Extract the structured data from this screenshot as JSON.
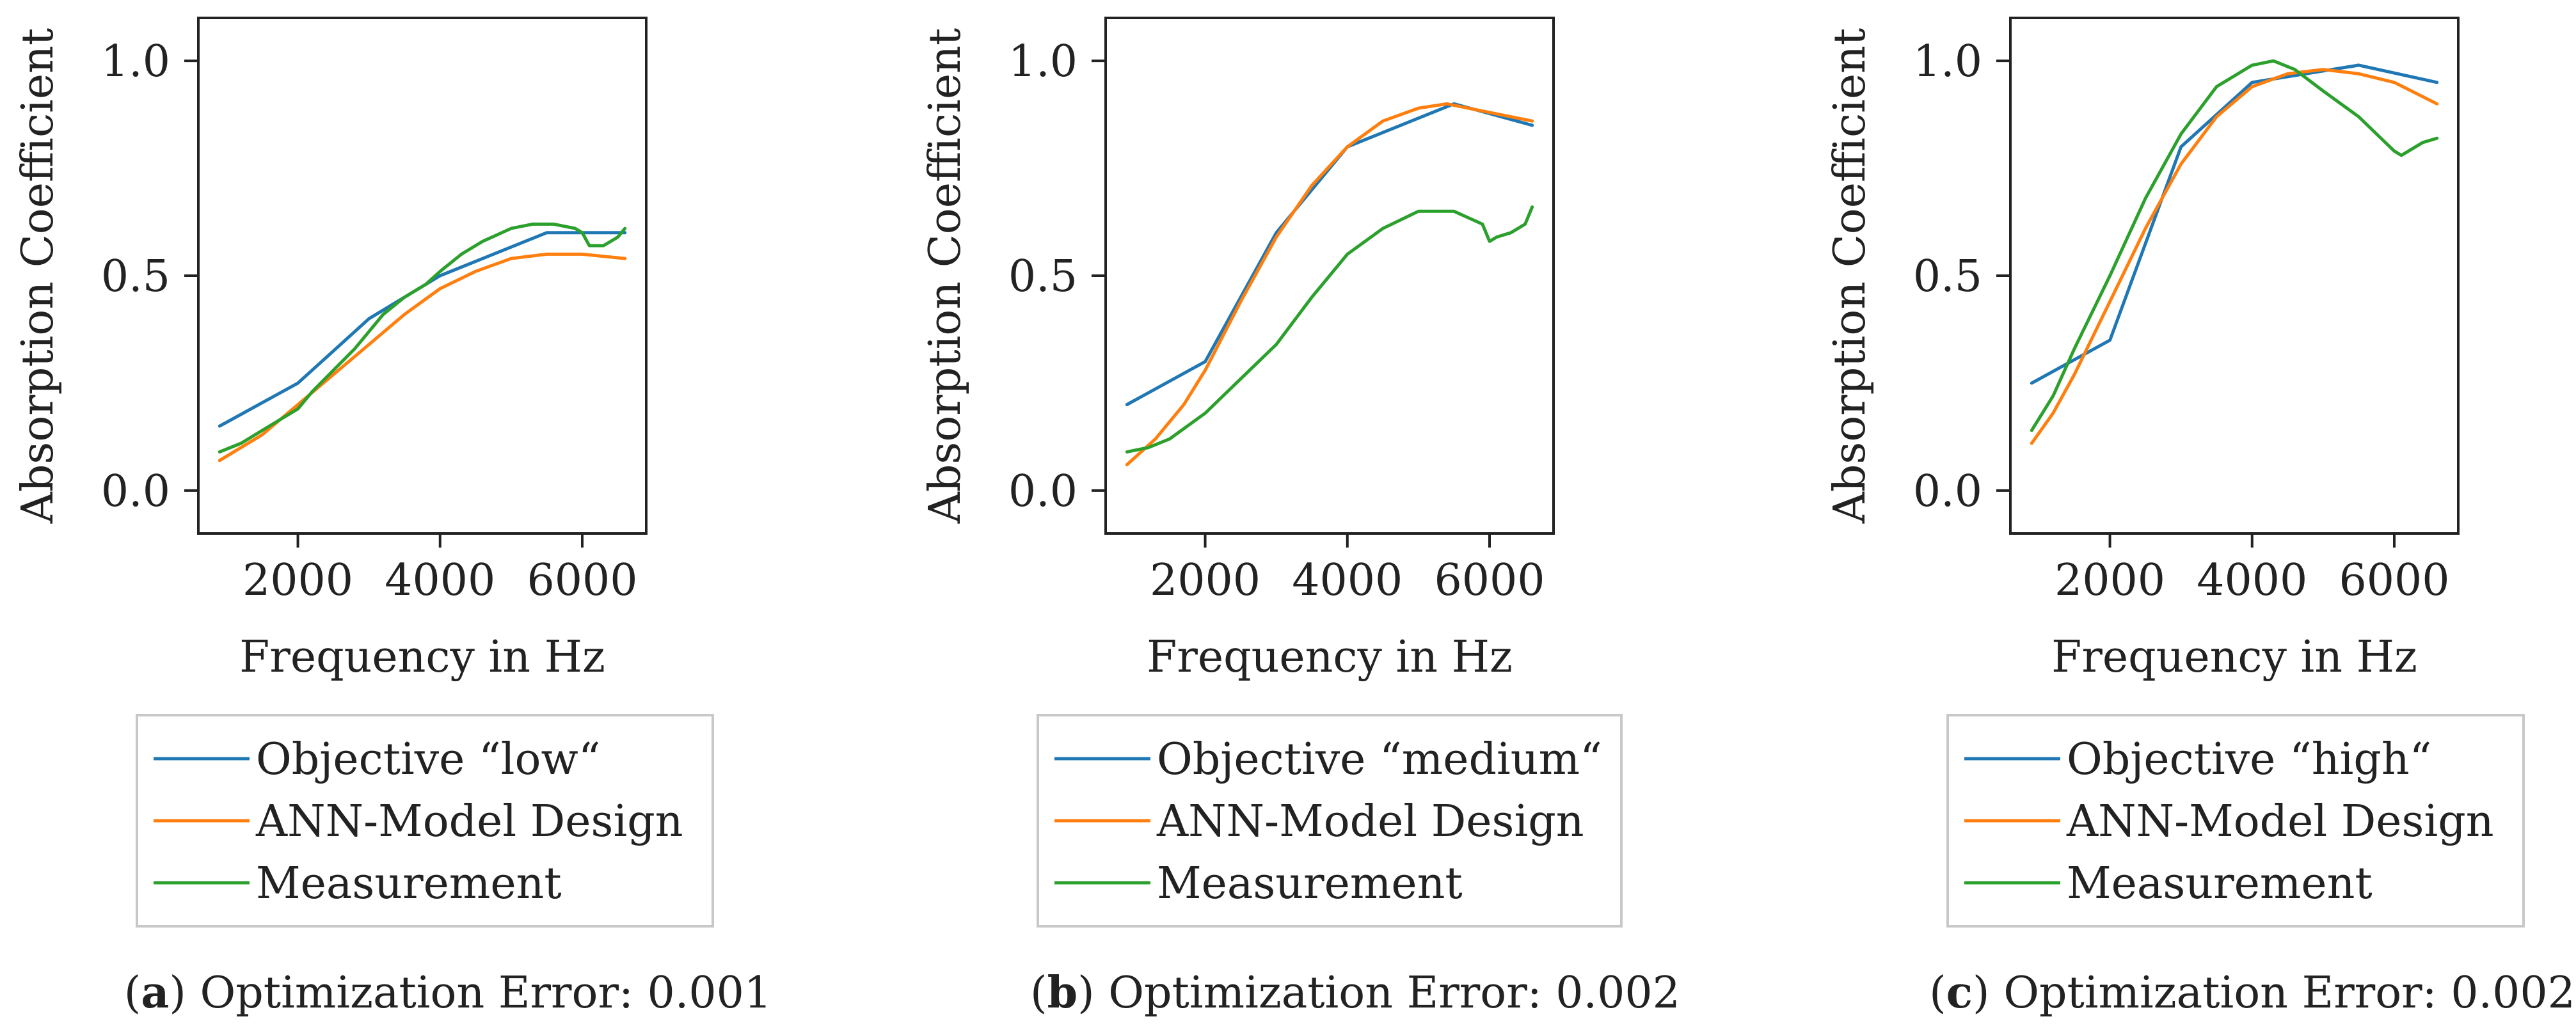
{
  "chart_data": [
    {
      "type": "line",
      "panel": "a",
      "caption": "Optimization Error: 0.001",
      "xlabel": "Frequency in Hz",
      "ylabel": "Absorption Coefficient",
      "xlim": [
        600,
        6900
      ],
      "ylim": [
        -0.1,
        1.1
      ],
      "xticks": [
        2000,
        4000,
        6000
      ],
      "yticks": [
        0.0,
        0.5,
        1.0
      ],
      "ytick_labels": [
        "0.0",
        "0.5",
        "1.0"
      ],
      "series": [
        {
          "name": "Objective “low“",
          "color": "#1f77b4",
          "x": [
            900,
            2000,
            3000,
            4000,
            5500,
            6600
          ],
          "y": [
            0.15,
            0.25,
            0.4,
            0.5,
            0.6,
            0.6
          ]
        },
        {
          "name": "ANN-Model Design",
          "color": "#ff7f0e",
          "x": [
            900,
            1500,
            2000,
            2500,
            3000,
            3500,
            4000,
            4500,
            5000,
            5500,
            6000,
            6600
          ],
          "y": [
            0.07,
            0.13,
            0.2,
            0.27,
            0.34,
            0.41,
            0.47,
            0.51,
            0.54,
            0.55,
            0.55,
            0.54
          ]
        },
        {
          "name": "Measurement",
          "color": "#2ca02c",
          "x": [
            900,
            1200,
            1500,
            1800,
            2000,
            2200,
            2500,
            2800,
            3000,
            3200,
            3500,
            3800,
            4000,
            4300,
            4600,
            5000,
            5300,
            5600,
            5900,
            6000,
            6100,
            6300,
            6500,
            6600
          ],
          "y": [
            0.09,
            0.11,
            0.14,
            0.17,
            0.19,
            0.23,
            0.28,
            0.33,
            0.37,
            0.41,
            0.45,
            0.48,
            0.51,
            0.55,
            0.58,
            0.61,
            0.62,
            0.62,
            0.61,
            0.6,
            0.57,
            0.57,
            0.59,
            0.61
          ]
        }
      ]
    },
    {
      "type": "line",
      "panel": "b",
      "caption": "Optimization Error: 0.002",
      "xlabel": "Frequency in Hz",
      "ylabel": "Absorption Coefficient",
      "xlim": [
        600,
        6900
      ],
      "ylim": [
        -0.1,
        1.1
      ],
      "xticks": [
        2000,
        4000,
        6000
      ],
      "yticks": [
        0.0,
        0.5,
        1.0
      ],
      "ytick_labels": [
        "0.0",
        "0.5",
        "1.0"
      ],
      "series": [
        {
          "name": "Objective “medium“",
          "color": "#1f77b4",
          "x": [
            900,
            2000,
            3000,
            4000,
            5500,
            6600
          ],
          "y": [
            0.2,
            0.3,
            0.6,
            0.8,
            0.9,
            0.85
          ]
        },
        {
          "name": "ANN-Model Design",
          "color": "#ff7f0e",
          "x": [
            900,
            1300,
            1700,
            2000,
            2500,
            3000,
            3500,
            4000,
            4500,
            5000,
            5400,
            6000,
            6600
          ],
          "y": [
            0.06,
            0.12,
            0.2,
            0.28,
            0.44,
            0.59,
            0.71,
            0.8,
            0.86,
            0.89,
            0.9,
            0.88,
            0.86
          ]
        },
        {
          "name": "Measurement",
          "color": "#2ca02c",
          "x": [
            900,
            1200,
            1500,
            2000,
            2500,
            3000,
            3500,
            4000,
            4500,
            5000,
            5500,
            5900,
            6000,
            6100,
            6300,
            6500,
            6600
          ],
          "y": [
            0.09,
            0.1,
            0.12,
            0.18,
            0.26,
            0.34,
            0.45,
            0.55,
            0.61,
            0.65,
            0.65,
            0.62,
            0.58,
            0.59,
            0.6,
            0.62,
            0.66
          ]
        }
      ]
    },
    {
      "type": "line",
      "panel": "c",
      "caption": "Optimization Error: 0.002",
      "xlabel": "Frequency in Hz",
      "ylabel": "Absorption Coefficient",
      "xlim": [
        600,
        6900
      ],
      "ylim": [
        -0.1,
        1.1
      ],
      "xticks": [
        2000,
        4000,
        6000
      ],
      "yticks": [
        0.0,
        0.5,
        1.0
      ],
      "ytick_labels": [
        "0.0",
        "0.5",
        "1.0"
      ],
      "series": [
        {
          "name": "Objective “high“",
          "color": "#1f77b4",
          "x": [
            900,
            2000,
            3000,
            4000,
            5500,
            6600
          ],
          "y": [
            0.25,
            0.35,
            0.8,
            0.95,
            0.99,
            0.95
          ]
        },
        {
          "name": "ANN-Model Design",
          "color": "#ff7f0e",
          "x": [
            900,
            1200,
            1500,
            2000,
            2500,
            3000,
            3500,
            4000,
            4500,
            5000,
            5500,
            6000,
            6600
          ],
          "y": [
            0.11,
            0.18,
            0.27,
            0.44,
            0.61,
            0.76,
            0.87,
            0.94,
            0.97,
            0.98,
            0.97,
            0.95,
            0.9
          ]
        },
        {
          "name": "Measurement",
          "color": "#2ca02c",
          "x": [
            900,
            1200,
            1500,
            2000,
            2500,
            3000,
            3500,
            4000,
            4300,
            4600,
            5000,
            5500,
            6000,
            6100,
            6200,
            6400,
            6600
          ],
          "y": [
            0.14,
            0.22,
            0.33,
            0.5,
            0.68,
            0.83,
            0.94,
            0.99,
            1.0,
            0.98,
            0.93,
            0.87,
            0.79,
            0.78,
            0.79,
            0.81,
            0.82
          ]
        }
      ]
    }
  ]
}
